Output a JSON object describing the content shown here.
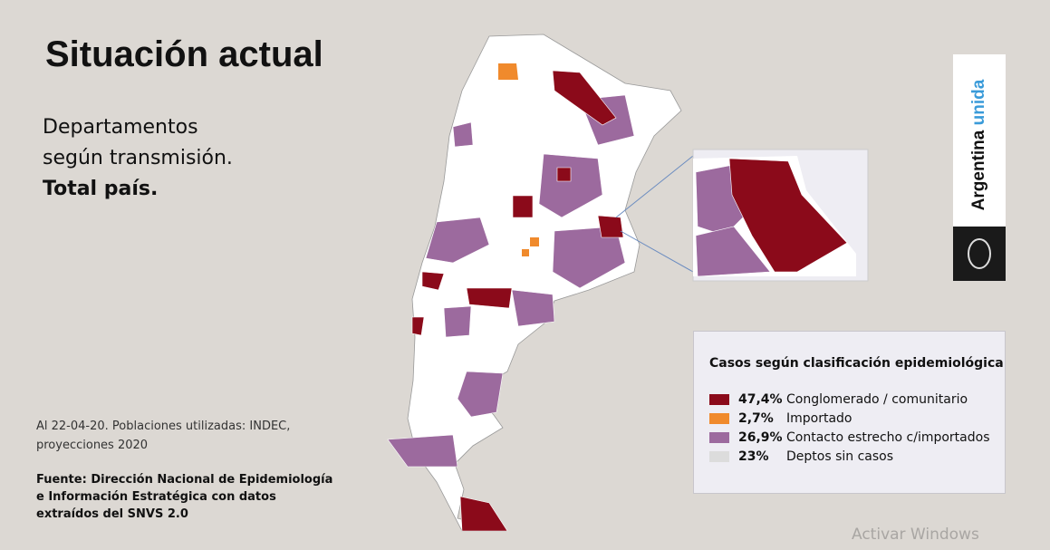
{
  "title": "Situación actual",
  "subtitle": {
    "lines": [
      "Departamentos",
      "según transmisión."
    ],
    "bold": "Total país."
  },
  "note": [
    "Al 22-04-20. Poblaciones utilizadas: INDEC,",
    "proyecciones 2020"
  ],
  "source": [
    "Fuente: Dirección Nacional de Epidemiología",
    "e Información Estratégica con datos",
    "extraídos del SNVS 2.0"
  ],
  "legend": {
    "title": "Casos según clasificación epidemiológica",
    "items": [
      {
        "color": "#8b0a1a",
        "pct": "47,4%",
        "label": "Conglomerado / comunitario"
      },
      {
        "color": "#f08a2c",
        "pct": "2,7%",
        "label": "Importado"
      },
      {
        "color": "#9c6a9e",
        "pct": "26,9%",
        "label": "Contacto estrecho c/importados"
      },
      {
        "color": "#dcdcdc",
        "pct": "23%",
        "label": "Deptos sin casos"
      }
    ]
  },
  "brand": {
    "word1": "Argentina",
    "word2": "unida"
  },
  "watermark": "Activar Windows"
}
